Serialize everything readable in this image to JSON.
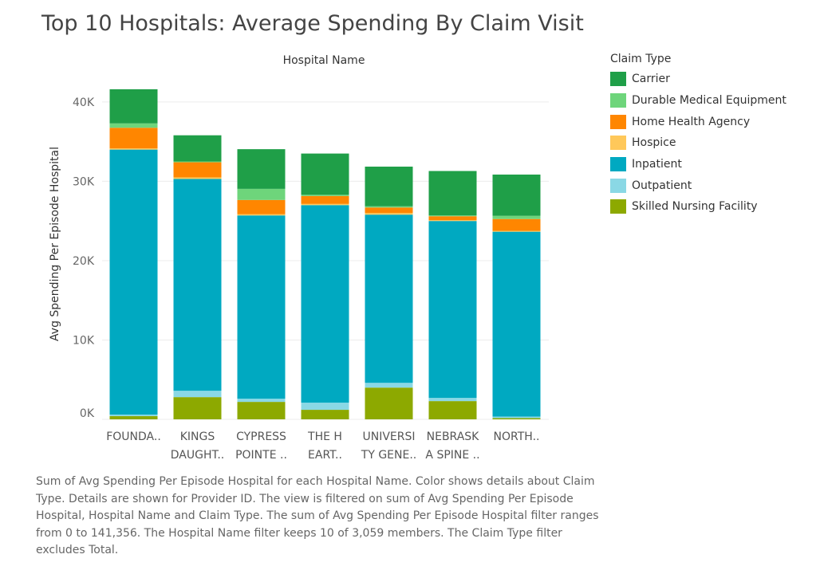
{
  "chart_data": {
    "type": "bar",
    "stacked": true,
    "title": "Top 10 Hospitals: Average Spending By Claim Visit",
    "column_header": "Hospital Name",
    "ylabel": "Avg Spending Per Episode Hospital",
    "ylim": [
      0,
      42000
    ],
    "yticks": [
      0,
      10000,
      20000,
      30000,
      40000
    ],
    "ytick_labels": [
      "0K",
      "10K",
      "20K",
      "30K",
      "40K"
    ],
    "categories": [
      [
        "FOUNDA.."
      ],
      [
        "KINGS",
        "DAUGHT.."
      ],
      [
        "CYPRESS",
        "POINTE .."
      ],
      [
        "THE H",
        "EART.."
      ],
      [
        "UNIVERSI",
        "TY GENE.."
      ],
      [
        "NEBRASK",
        "A SPINE .."
      ],
      [
        "NORTH.."
      ]
    ],
    "series": [
      {
        "name": "Skilled Nursing Facility",
        "color": "#8da900",
        "values": [
          400,
          2800,
          2200,
          1200,
          4000,
          2300,
          150
        ]
      },
      {
        "name": "Outpatient",
        "color": "#8ad8e5",
        "values": [
          200,
          800,
          400,
          900,
          600,
          400,
          200
        ]
      },
      {
        "name": "Inpatient",
        "color": "#00a9c1",
        "values": [
          33400,
          26700,
          23100,
          24900,
          21200,
          22300,
          23300
        ]
      },
      {
        "name": "Hospice",
        "color": "#ffc85a",
        "values": [
          150,
          200,
          150,
          150,
          200,
          100,
          100
        ]
      },
      {
        "name": "Home Health Agency",
        "color": "#ff8600",
        "values": [
          2600,
          1900,
          1800,
          1000,
          700,
          500,
          1500
        ]
      },
      {
        "name": "Durable Medical Equipment",
        "color": "#6ed57b",
        "values": [
          550,
          100,
          1400,
          150,
          150,
          100,
          400
        ]
      },
      {
        "name": "Carrier",
        "color": "#1f9f48",
        "values": [
          4300,
          3300,
          5000,
          5200,
          5000,
          5600,
          5200
        ]
      }
    ]
  },
  "legend": {
    "title": "Claim Type",
    "items": [
      {
        "label": "Carrier",
        "color": "#1f9f48"
      },
      {
        "label": "Durable Medical Equipment",
        "color": "#6ed57b"
      },
      {
        "label": "Home Health Agency",
        "color": "#ff8600"
      },
      {
        "label": "Hospice",
        "color": "#ffc85a"
      },
      {
        "label": "Inpatient",
        "color": "#00a9c1"
      },
      {
        "label": "Outpatient",
        "color": "#8ad8e5"
      },
      {
        "label": "Skilled Nursing Facility",
        "color": "#8da900"
      }
    ]
  },
  "caption": "Sum of Avg Spending Per Episode Hospital for each Hospital Name.  Color shows details about Claim Type.  Details are shown for Provider ID. The view is filtered on sum of Avg Spending Per Episode Hospital, Hospital Name and Claim Type. The sum of Avg Spending Per Episode Hospital filter ranges from 0 to 141,356. The Hospital Name filter keeps 10 of 3,059 members. The Claim Type filter excludes Total."
}
